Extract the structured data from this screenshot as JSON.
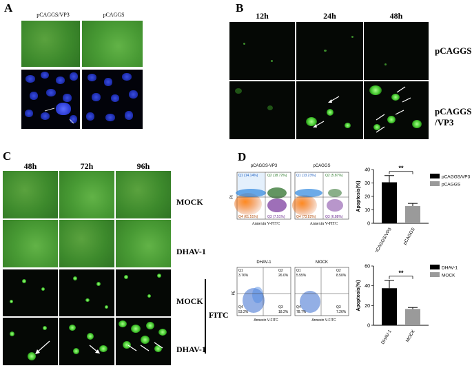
{
  "panels": {
    "A": {
      "label": "A",
      "col_headers": [
        "pCAGGS/VP3",
        "pCAGGS"
      ]
    },
    "B": {
      "label": "B",
      "col_headers": [
        "12h",
        "24h",
        "48h"
      ],
      "row_labels": [
        "pCAGGS",
        "pCAGGS",
        "/VP3"
      ]
    },
    "C": {
      "label": "C",
      "col_headers": [
        "48h",
        "72h",
        "96h"
      ],
      "row_labels": [
        "MOCK",
        "DHAV-1",
        "MOCK",
        "DHAV-1"
      ],
      "bracket_label": "FITC"
    },
    "D": {
      "label": "D",
      "flow_top": {
        "titles": [
          "pCAGGS-VP3",
          "pCAGGS"
        ],
        "quadrants_left": [
          "Q1 (14.14%)",
          "Q2 (18.72%)",
          "Q4 (61.51%)",
          "Q3 (7.51%)"
        ],
        "quadrants_right": [
          "Q1 (13.23%)",
          "Q2 (5.87%)",
          "Q4 (73.82%)",
          "Q3 (6.88%)"
        ],
        "xlabel": "Annexin V-FITC",
        "ylabel": "PI"
      },
      "flow_bottom": {
        "titles": [
          "DHAV-1",
          "MOCK"
        ],
        "quadrants_left": [
          "Q1",
          "3.76%",
          "Q2",
          "26.0%",
          "Q4",
          "53.2%",
          "Q3",
          "18.2%"
        ],
        "quadrants_right": [
          "Q1",
          "5.55%",
          "Q2",
          "8.50%",
          "Q4",
          "78.7%",
          "Q3",
          "7.26%"
        ],
        "xlabel": "Annexin V-FITC",
        "ylabel": "PE"
      }
    }
  },
  "chart_data": [
    {
      "type": "bar",
      "categories": [
        "pCAGGS/VP3",
        "pCAGGS"
      ],
      "values": [
        30.5,
        12.8
      ],
      "errors": [
        5,
        2
      ],
      "ylabel": "Apoptosis(%)",
      "ylim": [
        0,
        40
      ],
      "yticks": [
        "0",
        "10",
        "20",
        "30",
        "40"
      ],
      "legend": [
        "pCAGGS/VP3",
        "pCAGGS"
      ],
      "colors": [
        "#000000",
        "#9a9a9a"
      ],
      "significance": "**"
    },
    {
      "type": "bar",
      "categories": [
        "DHAV-1",
        "MOCK"
      ],
      "values": [
        37.5,
        16.5
      ],
      "errors": [
        8,
        1.5
      ],
      "ylabel": "Apoptosis(%)",
      "ylim": [
        0,
        60
      ],
      "yticks": [
        "0",
        "20",
        "40",
        "60"
      ],
      "legend": [
        "DHAV-1",
        "MOCK"
      ],
      "colors": [
        "#000000",
        "#9a9a9a"
      ],
      "significance": "**"
    }
  ]
}
